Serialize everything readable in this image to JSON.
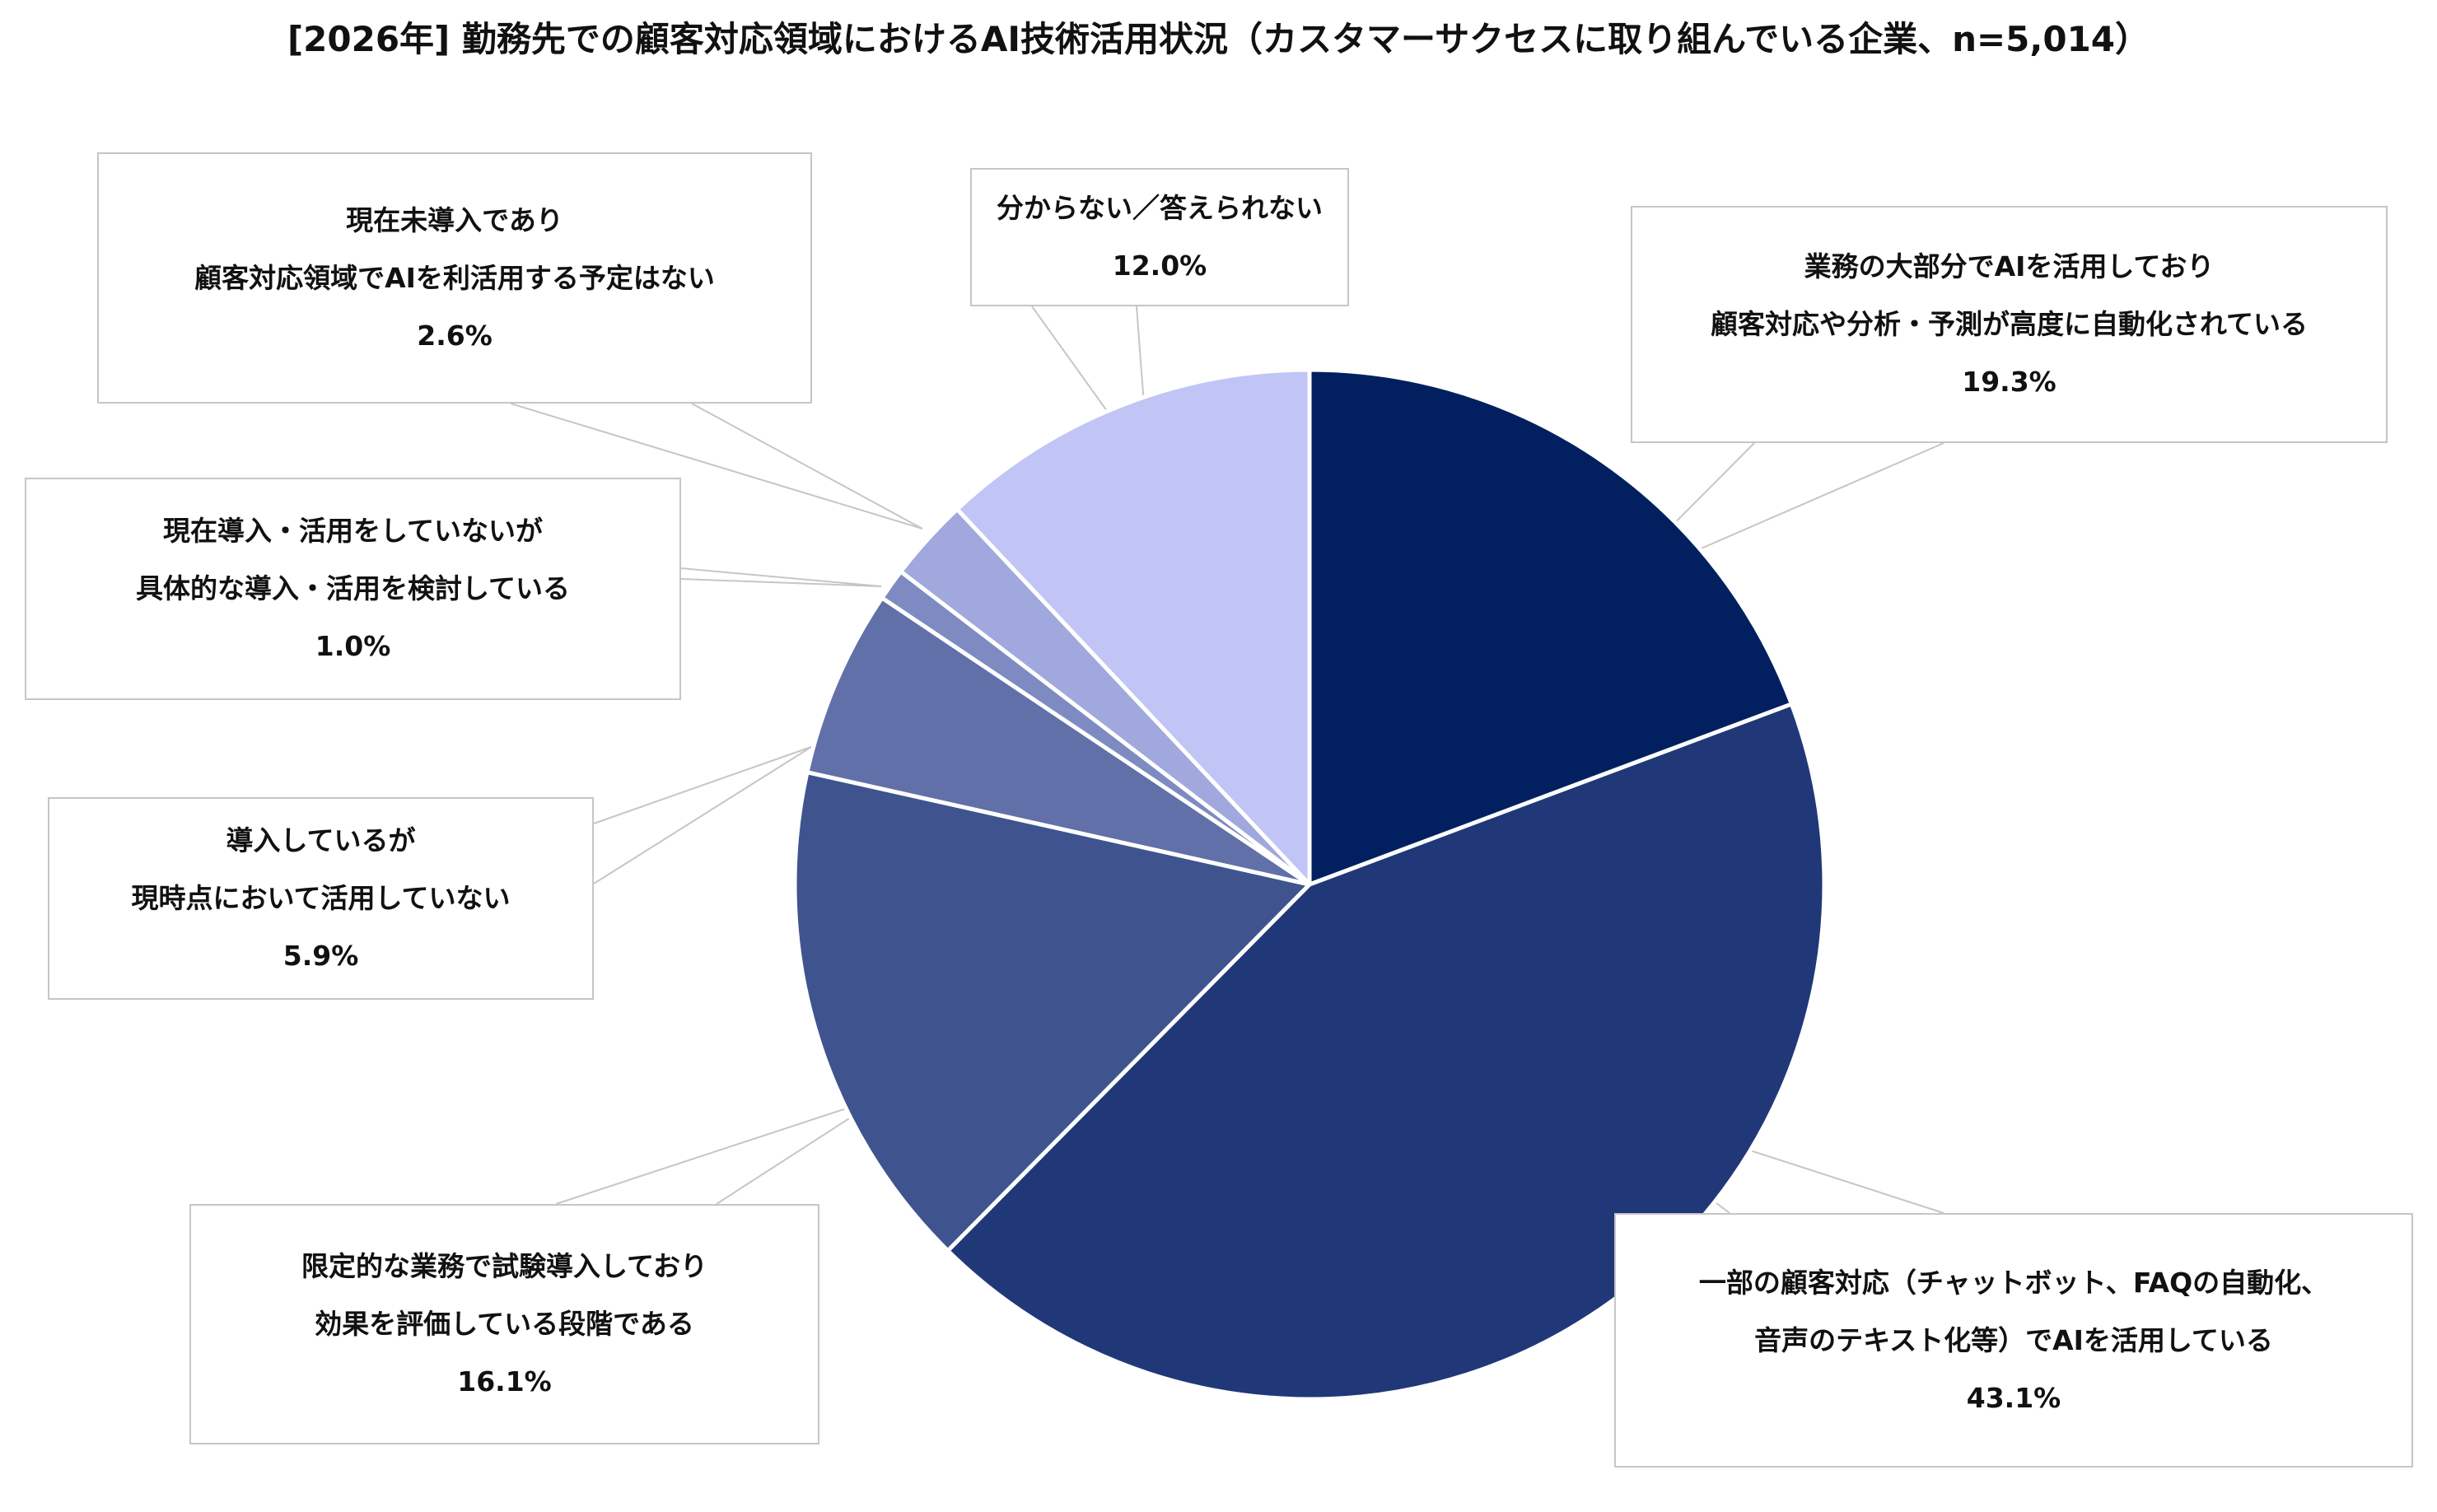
{
  "title": "[2026年] 勤務先での顧客対応領域におけるAI技術活用状況（カスタマーサクセスに取り組んでいる企業、n=5,014）",
  "chart_data": {
    "type": "pie",
    "title": "[2026年] 勤務先での顧客対応領域におけるAI技術活用状況（カスタマーサクセスに取り組んでいる企業、n=5,014）",
    "n": 5014,
    "unit": "%",
    "start": "12 o'clock",
    "direction": "clockwise",
    "slices": [
      {
        "lines": [
          "業務の大部分でAIを活用しており",
          "顧客対応や分析・予測が高度に自動化されている"
        ],
        "value": 19.3,
        "value_label": "19.3%",
        "color": "#02205f"
      },
      {
        "lines": [
          "一部の顧客対応（チャットボット、FAQの自動化、",
          "音声のテキスト化等）でAIを活用している"
        ],
        "value": 43.1,
        "value_label": "43.1%",
        "color": "#203878"
      },
      {
        "lines": [
          "限定的な業務で試験導入しており",
          "効果を評価している段階である"
        ],
        "value": 16.1,
        "value_label": "16.1%",
        "color": "#3f548f"
      },
      {
        "lines": [
          "導入しているが",
          "現時点において活用していない"
        ],
        "value": 5.9,
        "value_label": "5.9%",
        "color": "#6170a8"
      },
      {
        "lines": [
          "現在導入・活用をしていないが",
          "具体的な導入・活用を検討している"
        ],
        "value": 1.0,
        "value_label": "1.0%",
        "color": "#7e8bc2"
      },
      {
        "lines": [
          "現在未導入であり",
          "顧客対応領域でAIを利活用する予定はない"
        ],
        "value": 2.6,
        "value_label": "2.6%",
        "color": "#a0a8de"
      },
      {
        "lines": [
          "分からない／答えられない"
        ],
        "value": 12.0,
        "value_label": "12.0%",
        "color": "#c0c5f6"
      }
    ]
  }
}
